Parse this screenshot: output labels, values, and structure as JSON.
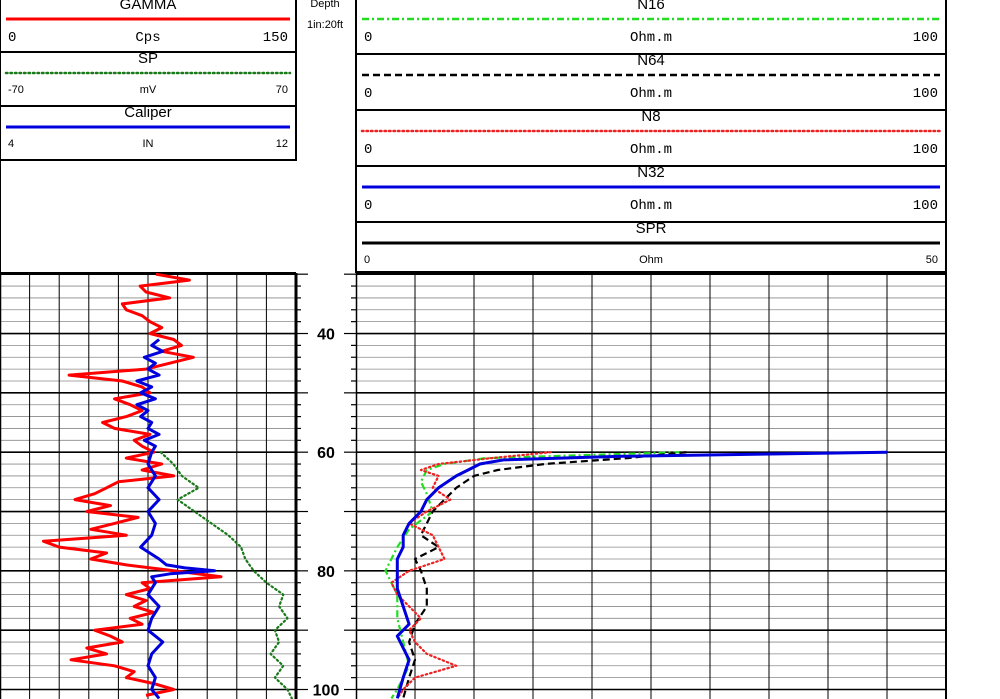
{
  "header": {
    "depth_title": "Depth",
    "depth_scale": "1in:20ft"
  },
  "left_track_curves": [
    {
      "name": "GAMMA",
      "min": "0",
      "unit": "Cps",
      "max": "150",
      "color": "#ff0000",
      "style": "solid",
      "mono": true
    },
    {
      "name": "SP",
      "min": "-70",
      "unit": "mV",
      "max": "70",
      "color": "#1a7a1a",
      "style": "dotted",
      "mono": false
    },
    {
      "name": "Caliper",
      "min": "4",
      "unit": "IN",
      "max": "12",
      "color": "#0000dd",
      "style": "solid",
      "mono": false
    }
  ],
  "right_track_curves": [
    {
      "name": "N16",
      "min": "0",
      "unit": "Ohm.m",
      "max": "100",
      "color": "#22dd22",
      "style": "dashdot",
      "mono": true
    },
    {
      "name": "N64",
      "min": "0",
      "unit": "Ohm.m",
      "max": "100",
      "color": "#000000",
      "style": "dashed",
      "mono": true
    },
    {
      "name": "N8",
      "min": "0",
      "unit": "Ohm.m",
      "max": "100",
      "color": "#ee2222",
      "style": "dotted",
      "mono": true
    },
    {
      "name": "N32",
      "min": "0",
      "unit": "Ohm.m",
      "max": "100",
      "color": "#0000dd",
      "style": "solid",
      "mono": true
    },
    {
      "name": "SPR",
      "min": "0",
      "unit": "Ohm",
      "max": "50",
      "color": "#000000",
      "style": "solid",
      "mono": false
    }
  ],
  "chart_data": {
    "type": "line",
    "title": "",
    "y_axis": {
      "label": "Depth",
      "unit": "ft",
      "range": [
        29.8,
        101.6
      ],
      "inverted": true,
      "ticks": [
        40,
        60,
        80,
        100
      ]
    },
    "tracks": [
      {
        "name": "left",
        "series": [
          {
            "name": "GAMMA",
            "unit": "Cps",
            "range": [
              0,
              150
            ],
            "color": "#ff0000",
            "depth": [
              30,
              31,
              32,
              33,
              34,
              35,
              36,
              37,
              38,
              39,
              40,
              41,
              42,
              43,
              44,
              45,
              46,
              47,
              48,
              49,
              50,
              51,
              52,
              53,
              54,
              55,
              56,
              57,
              58,
              59,
              60,
              61,
              62,
              63,
              64,
              65,
              66,
              67,
              68,
              69,
              70,
              71,
              72,
              73,
              74,
              75,
              76,
              77,
              78,
              79,
              80,
              81,
              82,
              83,
              84,
              85,
              86,
              87,
              88,
              89,
              90,
              91,
              92,
              93,
              94,
              95,
              96,
              97,
              98,
              99,
              100,
              101
            ],
            "values": [
              79,
              96,
              71,
              74,
              86,
              62,
              64,
              72,
              76,
              82,
              76,
              88,
              92,
              82,
              98,
              86,
              74,
              35,
              62,
              72,
              76,
              58,
              66,
              72,
              64,
              52,
              58,
              76,
              68,
              72,
              78,
              64,
              82,
              72,
              88,
              60,
              54,
              48,
              38,
              56,
              44,
              70,
              58,
              46,
              64,
              22,
              30,
              54,
              46,
              64,
              88,
              112,
              72,
              76,
              64,
              74,
              68,
              78,
              66,
              72,
              48,
              56,
              62,
              44,
              54,
              36,
              58,
              68,
              64,
              78,
              88,
              74
            ]
          },
          {
            "name": "SP",
            "unit": "mV",
            "range": [
              -70,
              70
            ],
            "color": "#1a7a1a",
            "depth": [
              60,
              62,
              64,
              66,
              68,
              70,
              72,
              74,
              76,
              78,
              80,
              82,
              84,
              86,
              88,
              90,
              92,
              94,
              96,
              98,
              100,
              101.5
            ],
            "values": [
              6,
              12,
              16,
              24,
              14,
              22,
              30,
              38,
              44,
              46,
              50,
              56,
              64,
              62,
              66,
              60,
              62,
              58,
              64,
              60,
              66,
              68
            ]
          },
          {
            "name": "Caliper",
            "unit": "IN",
            "range": [
              4,
              12
            ],
            "color": "#0000dd",
            "depth": [
              41,
              42,
              43,
              44,
              45,
              46,
              47,
              48,
              49,
              50,
              51,
              52,
              53,
              54,
              55,
              56,
              57,
              58,
              59,
              60,
              62,
              64,
              66,
              68,
              70,
              72,
              74,
              76,
              78,
              79,
              79.5,
              80,
              80.5,
              81,
              82,
              84,
              86,
              88,
              90,
              92,
              94,
              96,
              98,
              100,
              101.5
            ],
            "values": [
              8.3,
              8.1,
              8.4,
              7.9,
              8.2,
              8.0,
              8.3,
              7.7,
              8.1,
              7.8,
              8.2,
              7.7,
              8.0,
              7.8,
              8.1,
              8.0,
              8.3,
              7.9,
              8.2,
              8.1,
              8.0,
              8.2,
              8.0,
              8.3,
              8.0,
              8.2,
              8.1,
              7.8,
              8.3,
              8.5,
              9.0,
              9.8,
              8.6,
              8.1,
              8.2,
              8.0,
              8.3,
              8.1,
              8.0,
              8.4,
              8.1,
              8.0,
              8.2,
              8.1,
              8.3
            ]
          }
        ]
      },
      {
        "name": "right",
        "series": [
          {
            "name": "N16",
            "unit": "Ohm.m",
            "range": [
              0,
              100
            ],
            "color": "#22dd22",
            "depth": [
              60,
              61,
              62,
              63,
              65,
              67,
              70,
              73,
              76,
              80,
              84,
              88,
              92,
              96,
              100,
              101.5
            ],
            "values": [
              55,
              22,
              15,
              12,
              11,
              12,
              13,
              9,
              7,
              5,
              7,
              7,
              8,
              9,
              7,
              6
            ]
          },
          {
            "name": "N64",
            "unit": "Ohm.m",
            "range": [
              0,
              100
            ],
            "color": "#000000",
            "depth": [
              60,
              61,
              62,
              63,
              64,
              66,
              68,
              70,
              72,
              74,
              76,
              78,
              80,
              83,
              86,
              89,
              92,
              95,
              98,
              101.5
            ],
            "values": [
              56,
              46,
              32,
              24,
              20,
              17,
              15,
              13,
              12,
              11,
              14,
              10,
              11,
              12,
              12,
              10,
              9,
              10,
              9,
              8
            ]
          },
          {
            "name": "N8",
            "unit": "Ohm.m",
            "range": [
              0,
              100
            ],
            "color": "#ee2222",
            "depth": [
              60,
              61,
              62,
              63,
              64,
              66,
              68,
              70,
              72,
              74,
              76,
              78,
              80,
              82,
              84,
              86,
              88,
              90,
              92,
              94,
              96,
              98,
              100,
              101.5
            ],
            "values": [
              33,
              23,
              14,
              11,
              14,
              13,
              16,
              12,
              9,
              13,
              14,
              15,
              9,
              6,
              7,
              9,
              11,
              9,
              10,
              12,
              17,
              10,
              8,
              7
            ]
          },
          {
            "name": "N32",
            "unit": "Ohm.m",
            "range": [
              0,
              100
            ],
            "color": "#0000dd",
            "depth": [
              60,
              60.7,
              61.3,
              62,
              63,
              64,
              66,
              68,
              70,
              72,
              74,
              76,
              78,
              80,
              83,
              86,
              89,
              91,
              93,
              95,
              98,
              101.5
            ],
            "values": [
              90,
              45,
              25,
              21,
              19,
              17,
              14,
              12,
              11,
              9,
              8,
              8,
              7,
              7,
              7,
              8,
              9,
              7,
              8,
              9,
              8,
              7
            ]
          }
        ]
      }
    ]
  }
}
